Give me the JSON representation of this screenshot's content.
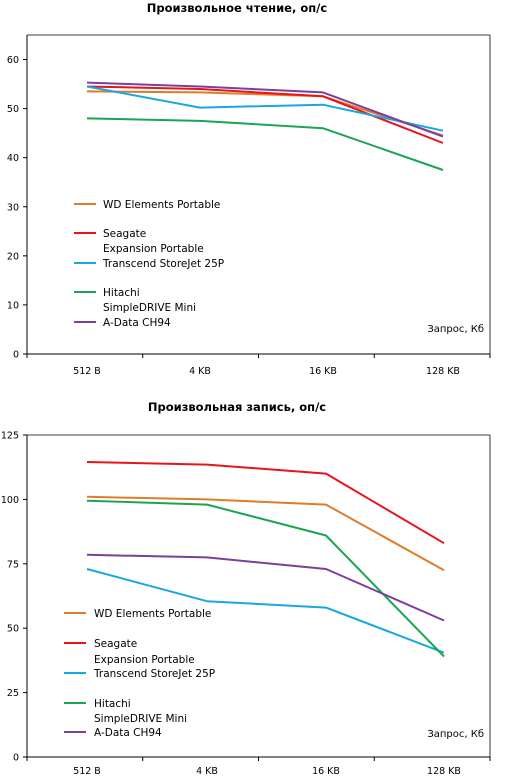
{
  "colors": {
    "wd": "#E07B2A",
    "seagate": "#E8141B",
    "transcend": "#16A9E1",
    "hitachi": "#1BA550",
    "adata": "#7B3F9E",
    "axis": "#000000"
  },
  "chart_data": [
    {
      "type": "line",
      "title": "Произвольное чтение, оп/с",
      "unit_label": "Запрос, Кб",
      "categories": [
        "512 B",
        "4 KB",
        "16 KB",
        "128 KB"
      ],
      "ylim": [
        0,
        65
      ],
      "yticks": [
        0,
        10,
        20,
        30,
        40,
        50,
        60
      ],
      "grid": false,
      "legend_position": "left-lower-inside",
      "series": [
        {
          "name": "WD Elements Portable",
          "color_key": "wd",
          "values": [
            53.5,
            53.3,
            52.5,
            44.5
          ]
        },
        {
          "name_lines": [
            "Seagate",
            "Expansion Portable"
          ],
          "color_key": "seagate",
          "values": [
            54.5,
            54.0,
            52.5,
            43.0
          ]
        },
        {
          "name": "Transcend StoreJet 25P",
          "color_key": "transcend",
          "values": [
            54.5,
            50.2,
            50.8,
            45.5
          ]
        },
        {
          "name_lines": [
            "Hitachi",
            "SimpleDRIVE Mini"
          ],
          "color_key": "hitachi",
          "values": [
            48.0,
            47.5,
            46.0,
            37.5
          ]
        },
        {
          "name": "A-Data CH94",
          "color_key": "adata",
          "values": [
            55.3,
            54.5,
            53.3,
            44.3
          ]
        }
      ]
    },
    {
      "type": "line",
      "title": "Произвольная запись, оп/с",
      "unit_label": "Запрос, Кб",
      "categories": [
        "512 B",
        "4 KB",
        "16 KB",
        "128 KB"
      ],
      "ylim": [
        0,
        125
      ],
      "yticks": [
        0,
        25,
        50,
        75,
        100,
        125
      ],
      "grid": false,
      "legend_position": "left-lower-inside",
      "series": [
        {
          "name": "WD Elements Portable",
          "color_key": "wd",
          "values": [
            101,
            100,
            98,
            72.5
          ]
        },
        {
          "name_lines": [
            "Seagate",
            "Expansion Portable"
          ],
          "color_key": "seagate",
          "values": [
            114.5,
            113.5,
            110,
            83
          ]
        },
        {
          "name": "Transcend StoreJet 25P",
          "color_key": "transcend",
          "values": [
            73,
            60.5,
            58,
            40.5
          ]
        },
        {
          "name_lines": [
            "Hitachi",
            "SimpleDRIVE Mini"
          ],
          "color_key": "hitachi",
          "values": [
            99.5,
            98,
            86,
            39
          ]
        },
        {
          "name": "A-Data CH94",
          "color_key": "adata",
          "values": [
            78.5,
            77.5,
            73,
            53
          ]
        }
      ]
    }
  ]
}
